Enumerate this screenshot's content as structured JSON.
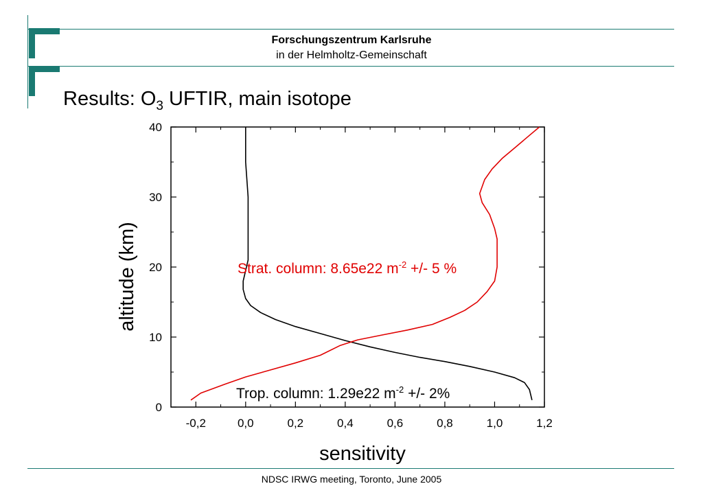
{
  "header": {
    "org": "Forschungszentrum Karlsruhe",
    "sub": "in der Helmholtz-Gemeinschaft"
  },
  "slide": {
    "title_prefix": "Results: O",
    "title_sub": "3",
    "title_suffix": " UFTIR, main isotope"
  },
  "footer": {
    "text": "NDSC IRWG meeting, Toronto, June 2005"
  },
  "colors": {
    "accent": "#1a7a72",
    "strat": "#e00000",
    "trop": "#000000"
  },
  "chart_data": {
    "type": "line",
    "title": "",
    "xlabel": "sensitivity",
    "ylabel": "altitude (km)",
    "xlim": [
      -0.3,
      1.2
    ],
    "ylim": [
      0,
      40
    ],
    "xticks": [
      -0.2,
      0.0,
      0.2,
      0.4,
      0.6,
      0.8,
      1.0,
      1.2
    ],
    "xtick_labels": [
      "-0,2",
      "0,0",
      "0,2",
      "0,4",
      "0,6",
      "0,8",
      "1,0",
      "1,2"
    ],
    "yticks": [
      0,
      10,
      20,
      30,
      40
    ],
    "ytick_labels": [
      "0",
      "10",
      "20",
      "30",
      "40"
    ],
    "grid": false,
    "series": [
      {
        "name": "Trop. column",
        "color": "#000000",
        "points": [
          [
            1.15,
            1.0
          ],
          [
            1.14,
            2.5
          ],
          [
            1.12,
            3.5
          ],
          [
            1.08,
            4.2
          ],
          [
            1.0,
            5.0
          ],
          [
            0.9,
            5.8
          ],
          [
            0.8,
            6.5
          ],
          [
            0.7,
            7.1
          ],
          [
            0.6,
            7.8
          ],
          [
            0.5,
            8.6
          ],
          [
            0.4,
            9.5
          ],
          [
            0.3,
            10.5
          ],
          [
            0.2,
            11.5
          ],
          [
            0.12,
            12.5
          ],
          [
            0.06,
            13.5
          ],
          [
            0.02,
            14.5
          ],
          [
            0.0,
            15.5
          ],
          [
            -0.01,
            16.8
          ],
          [
            -0.01,
            18.0
          ],
          [
            0.0,
            19.5
          ],
          [
            0.01,
            21.0
          ],
          [
            0.01,
            25.0
          ],
          [
            0.01,
            30.0
          ],
          [
            0.0,
            35.0
          ],
          [
            0.0,
            40.0
          ]
        ]
      },
      {
        "name": "Strat. column",
        "color": "#e00000",
        "points": [
          [
            -0.22,
            1.0
          ],
          [
            -0.18,
            2.0
          ],
          [
            -0.08,
            3.3
          ],
          [
            0.0,
            4.3
          ],
          [
            0.1,
            5.3
          ],
          [
            0.2,
            6.3
          ],
          [
            0.3,
            7.4
          ],
          [
            0.38,
            8.8
          ],
          [
            0.45,
            9.6
          ],
          [
            0.55,
            10.3
          ],
          [
            0.65,
            11.0
          ],
          [
            0.75,
            11.8
          ],
          [
            0.82,
            12.8
          ],
          [
            0.88,
            13.8
          ],
          [
            0.93,
            15.0
          ],
          [
            0.97,
            16.5
          ],
          [
            1.0,
            18.0
          ],
          [
            1.01,
            20.0
          ],
          [
            1.01,
            24.0
          ],
          [
            1.0,
            25.5
          ],
          [
            0.98,
            27.5
          ],
          [
            0.95,
            29.2
          ],
          [
            0.94,
            30.5
          ],
          [
            0.96,
            32.5
          ],
          [
            0.99,
            34.0
          ],
          [
            1.03,
            35.5
          ],
          [
            1.08,
            37.0
          ],
          [
            1.14,
            38.8
          ],
          [
            1.18,
            40.0
          ]
        ]
      }
    ],
    "annotations": {
      "strat": {
        "text": "Strat. column: 8.65e22 m",
        "sup": "-2",
        "tail": " +/- 5 %"
      },
      "trop": {
        "text": "Trop. column: 1.29e22 m",
        "sup": "-2",
        "tail": " +/- 2%"
      }
    }
  }
}
